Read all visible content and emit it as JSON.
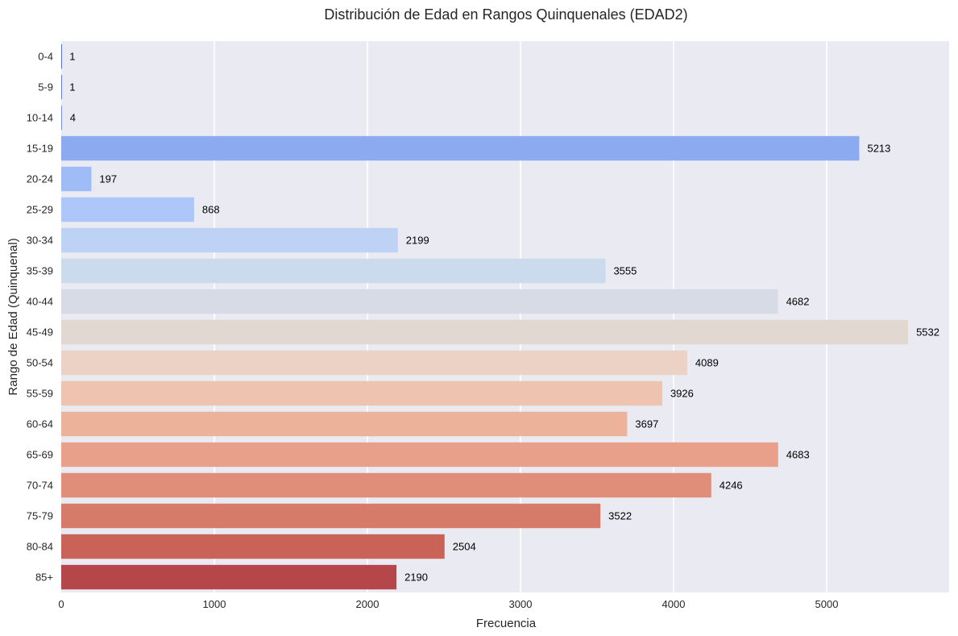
{
  "chart_data": {
    "type": "bar",
    "orientation": "horizontal",
    "title": "Distribución de Edad en Rangos Quinquenales (EDAD2)",
    "xlabel": "Frecuencia",
    "ylabel": "Rango de Edad (Quinquenal)",
    "categories": [
      "0-4",
      "5-9",
      "10-14",
      "15-19",
      "20-24",
      "25-29",
      "30-34",
      "35-39",
      "40-44",
      "45-49",
      "50-54",
      "55-59",
      "60-64",
      "65-69",
      "70-74",
      "75-79",
      "80-84",
      "85+"
    ],
    "values": [
      1,
      1,
      4,
      5213,
      197,
      868,
      2199,
      3555,
      4682,
      5532,
      4089,
      3926,
      3697,
      4683,
      4246,
      3522,
      2504,
      2190
    ],
    "colors": [
      "#3b4cc0",
      "#4961d2",
      "#5977e3",
      "#8caaf0",
      "#9fbcf7",
      "#adc7fb",
      "#bed2f6",
      "#ccdaee",
      "#d7dbe5",
      "#e1d8d2",
      "#ebd2c4",
      "#eec4b1",
      "#edb39a",
      "#e9a08a",
      "#e08d79",
      "#d67a69",
      "#c96257",
      "#b5474a"
    ],
    "xlim": [
      0,
      5800
    ],
    "xticks": [
      0,
      1000,
      2000,
      3000,
      4000,
      5000
    ],
    "grid": true,
    "background": "#eaeaf2"
  }
}
